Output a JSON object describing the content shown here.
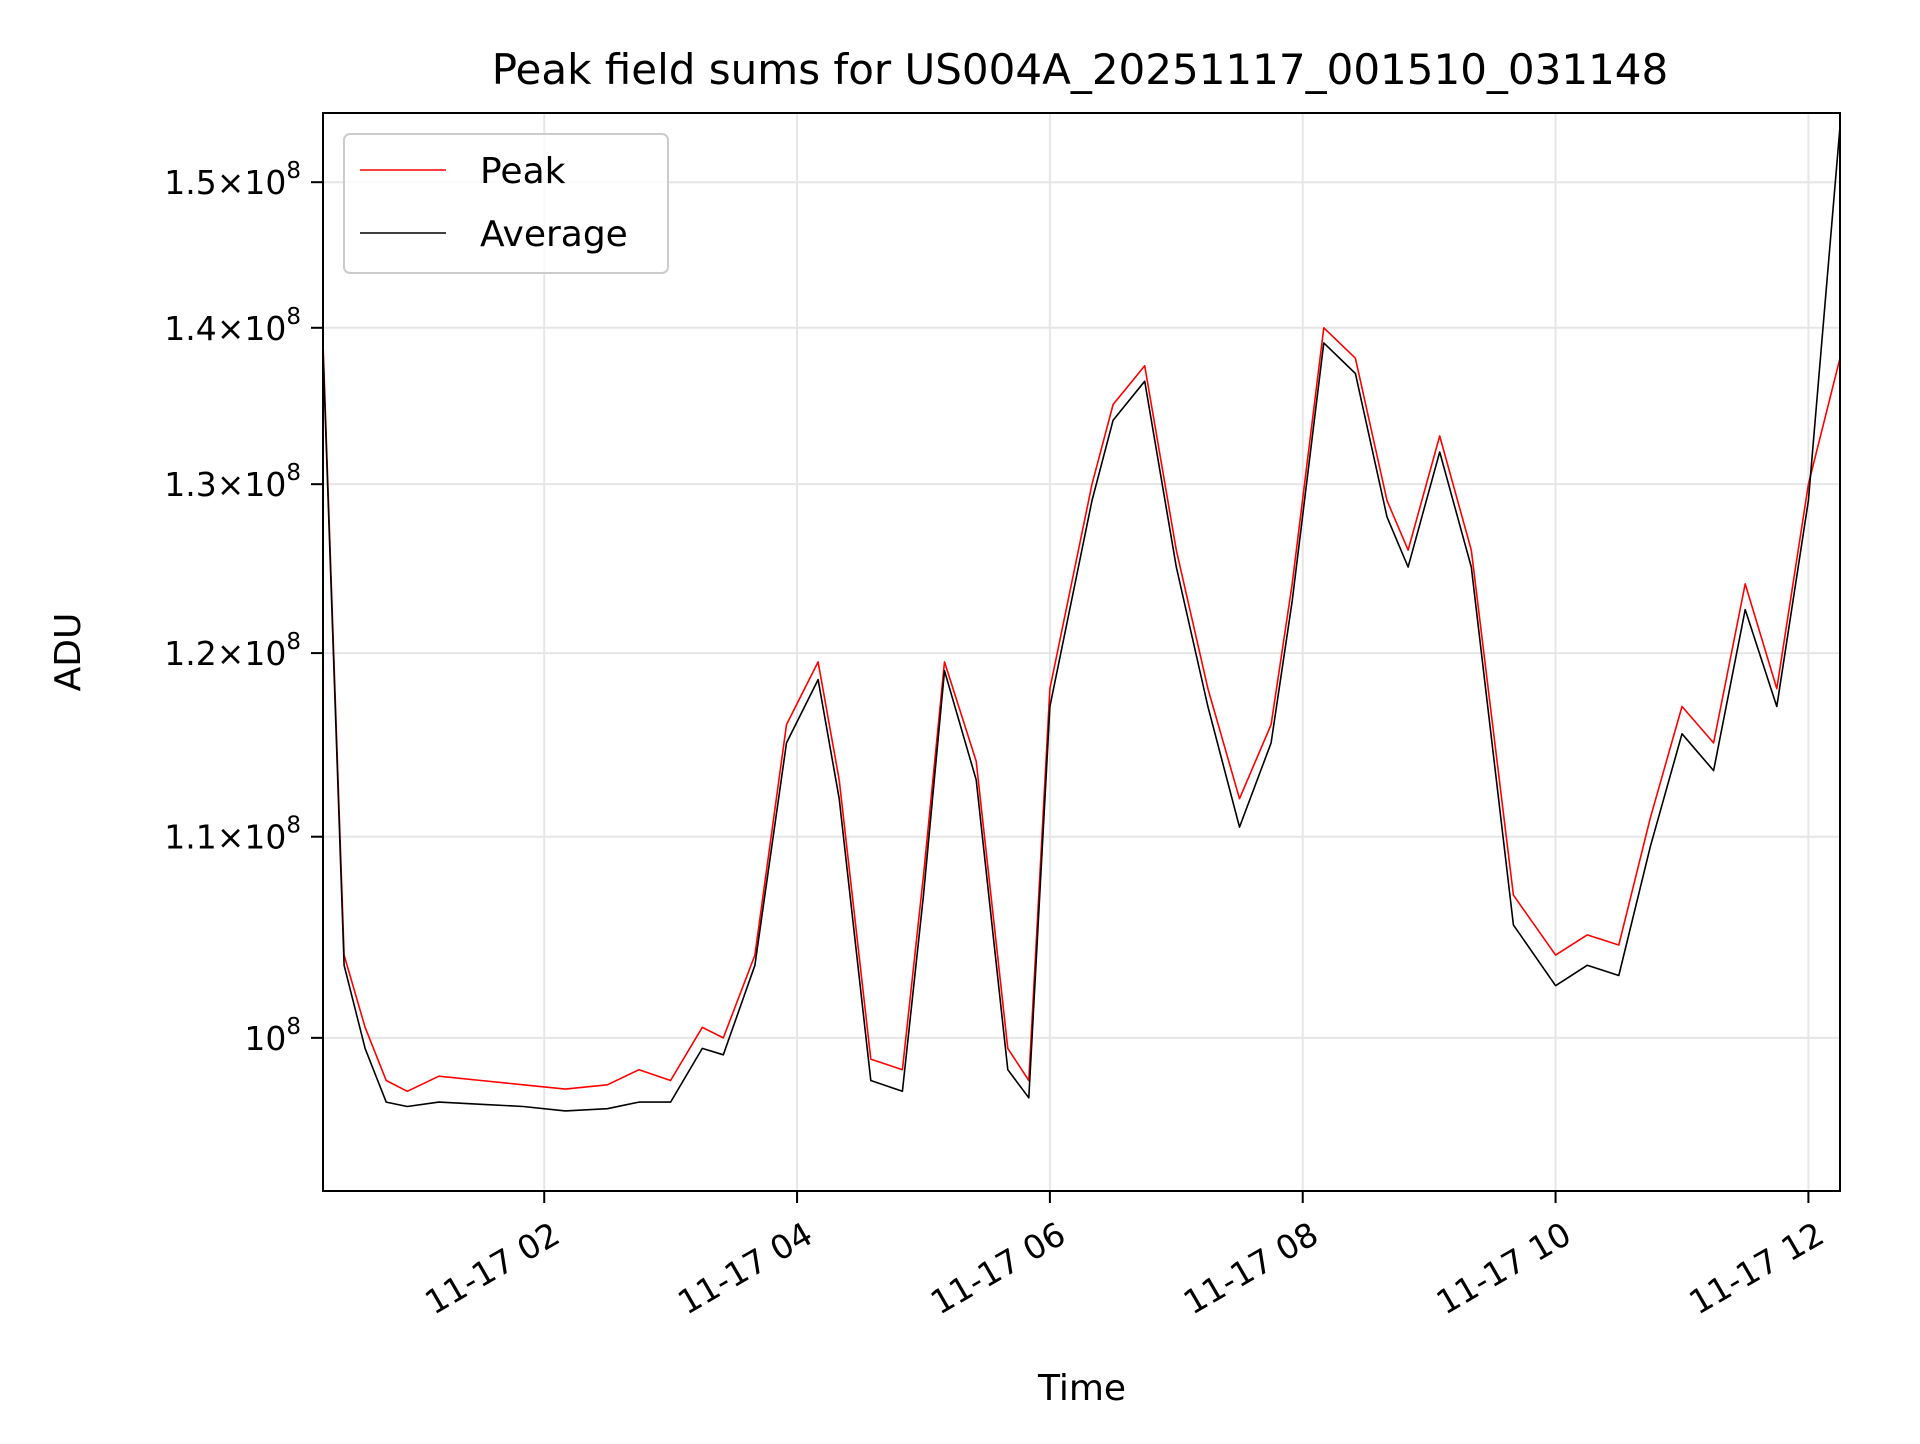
{
  "chart_data": {
    "type": "line",
    "title": "Peak field sums for US004A_20251117_001510_031148",
    "xlabel": "Time",
    "ylabel": "ADU",
    "y_scale": "log",
    "grid": true,
    "legend_position": "top-left",
    "xlim": [
      "2025-11-17 00:15",
      "2025-11-17 12:15"
    ],
    "ylim": [
      93000000,
      155000000
    ],
    "x_ticks": [
      {
        "value": "2025-11-17 02:00",
        "label": "11-17 02"
      },
      {
        "value": "2025-11-17 04:00",
        "label": "11-17 04"
      },
      {
        "value": "2025-11-17 06:00",
        "label": "11-17 06"
      },
      {
        "value": "2025-11-17 08:00",
        "label": "11-17 08"
      },
      {
        "value": "2025-11-17 10:00",
        "label": "11-17 10"
      },
      {
        "value": "2025-11-17 12:00",
        "label": "11-17 12"
      }
    ],
    "y_ticks": [
      {
        "value": 100000000,
        "mantissa": "",
        "exponent": "8"
      },
      {
        "value": 110000000,
        "mantissa": "1.1",
        "exponent": "8"
      },
      {
        "value": 120000000,
        "mantissa": "1.2",
        "exponent": "8"
      },
      {
        "value": 130000000,
        "mantissa": "1.3",
        "exponent": "8"
      },
      {
        "value": 140000000,
        "mantissa": "1.4",
        "exponent": "8"
      },
      {
        "value": 150000000,
        "mantissa": "1.5",
        "exponent": "8"
      }
    ],
    "series": [
      {
        "name": "Peak",
        "color": "#ff0000",
        "x": [
          "2025-11-17 00:15",
          "2025-11-17 00:25",
          "2025-11-17 00:35",
          "2025-11-17 00:45",
          "2025-11-17 00:55",
          "2025-11-17 01:10",
          "2025-11-17 01:30",
          "2025-11-17 01:50",
          "2025-11-17 02:10",
          "2025-11-17 02:30",
          "2025-11-17 02:45",
          "2025-11-17 03:00",
          "2025-11-17 03:15",
          "2025-11-17 03:25",
          "2025-11-17 03:40",
          "2025-11-17 03:55",
          "2025-11-17 04:10",
          "2025-11-17 04:20",
          "2025-11-17 04:35",
          "2025-11-17 04:50",
          "2025-11-17 05:00",
          "2025-11-17 05:10",
          "2025-11-17 05:25",
          "2025-11-17 05:40",
          "2025-11-17 05:50",
          "2025-11-17 06:00",
          "2025-11-17 06:20",
          "2025-11-17 06:30",
          "2025-11-17 06:45",
          "2025-11-17 07:00",
          "2025-11-17 07:15",
          "2025-11-17 07:30",
          "2025-11-17 07:45",
          "2025-11-17 07:55",
          "2025-11-17 08:10",
          "2025-11-17 08:25",
          "2025-11-17 08:40",
          "2025-11-17 08:50",
          "2025-11-17 09:05",
          "2025-11-17 09:20",
          "2025-11-17 09:40",
          "2025-11-17 10:00",
          "2025-11-17 10:15",
          "2025-11-17 10:30",
          "2025-11-17 10:45",
          "2025-11-17 11:00",
          "2025-11-17 11:15",
          "2025-11-17 11:30",
          "2025-11-17 11:45",
          "2025-11-17 12:00",
          "2025-11-17 12:15"
        ],
        "values": [
          139000000,
          104000000,
          100500000,
          98000000,
          97500000,
          98200000,
          98000000,
          97800000,
          97600000,
          97800000,
          98500000,
          98000000,
          100500000,
          100000000,
          104000000,
          116000000,
          119500000,
          113000000,
          99000000,
          98500000,
          108000000,
          119500000,
          114000000,
          99500000,
          98000000,
          118000000,
          130000000,
          135000000,
          137500000,
          126000000,
          118000000,
          112000000,
          116000000,
          124000000,
          140000000,
          138000000,
          129000000,
          126000000,
          133000000,
          126000000,
          107000000,
          104000000,
          105000000,
          104500000,
          111000000,
          117000000,
          115000000,
          124000000,
          118000000,
          130000000,
          138000000
        ]
      },
      {
        "name": "Average",
        "color": "#000000",
        "x": [
          "2025-11-17 00:15",
          "2025-11-17 00:25",
          "2025-11-17 00:35",
          "2025-11-17 00:45",
          "2025-11-17 00:55",
          "2025-11-17 01:10",
          "2025-11-17 01:30",
          "2025-11-17 01:50",
          "2025-11-17 02:10",
          "2025-11-17 02:30",
          "2025-11-17 02:45",
          "2025-11-17 03:00",
          "2025-11-17 03:15",
          "2025-11-17 03:25",
          "2025-11-17 03:40",
          "2025-11-17 03:55",
          "2025-11-17 04:10",
          "2025-11-17 04:20",
          "2025-11-17 04:35",
          "2025-11-17 04:50",
          "2025-11-17 05:00",
          "2025-11-17 05:10",
          "2025-11-17 05:25",
          "2025-11-17 05:40",
          "2025-11-17 05:50",
          "2025-11-17 06:00",
          "2025-11-17 06:20",
          "2025-11-17 06:30",
          "2025-11-17 06:45",
          "2025-11-17 07:00",
          "2025-11-17 07:15",
          "2025-11-17 07:30",
          "2025-11-17 07:45",
          "2025-11-17 07:55",
          "2025-11-17 08:10",
          "2025-11-17 08:25",
          "2025-11-17 08:40",
          "2025-11-17 08:50",
          "2025-11-17 09:05",
          "2025-11-17 09:20",
          "2025-11-17 09:40",
          "2025-11-17 10:00",
          "2025-11-17 10:15",
          "2025-11-17 10:30",
          "2025-11-17 10:45",
          "2025-11-17 11:00",
          "2025-11-17 11:15",
          "2025-11-17 11:30",
          "2025-11-17 11:45",
          "2025-11-17 12:00",
          "2025-11-17 12:15"
        ],
        "values": [
          138500000,
          103500000,
          99500000,
          97000000,
          96800000,
          97000000,
          96900000,
          96800000,
          96600000,
          96700000,
          97000000,
          97000000,
          99500000,
          99200000,
          103500000,
          115000000,
          118500000,
          112000000,
          98000000,
          97500000,
          107000000,
          119000000,
          113000000,
          98500000,
          97200000,
          117000000,
          129000000,
          134000000,
          136500000,
          125000000,
          117000000,
          110500000,
          115000000,
          123000000,
          139000000,
          137000000,
          128000000,
          125000000,
          132000000,
          125000000,
          105500000,
          102500000,
          103500000,
          103000000,
          109500000,
          115500000,
          113500000,
          122500000,
          117000000,
          129000000,
          154000000
        ]
      }
    ]
  }
}
